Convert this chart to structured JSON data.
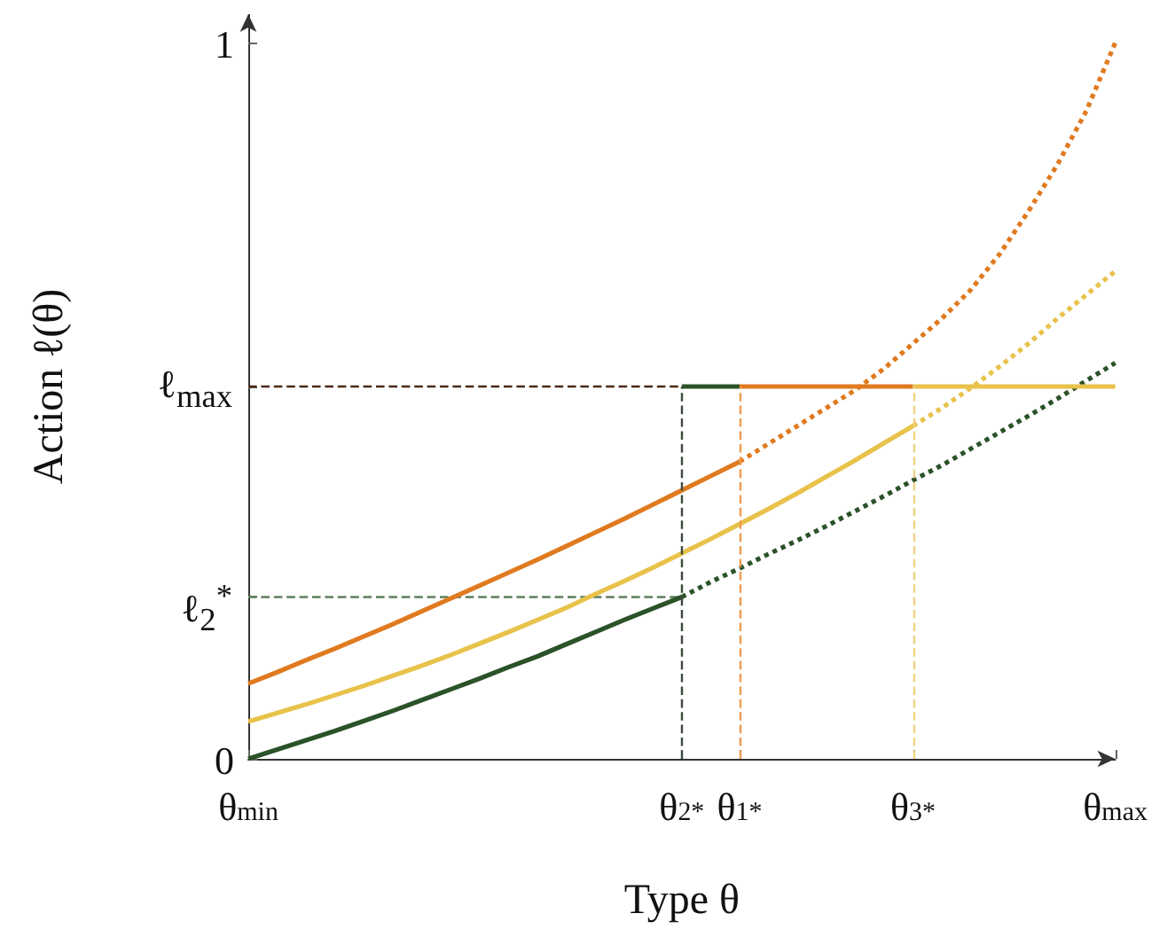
{
  "chart_data": {
    "type": "line",
    "xlabel": "Type θ",
    "ylabel": "Action ℓ(θ)",
    "categories": [
      "θ$_{min}$",
      null,
      null,
      null,
      null,
      null,
      null,
      null,
      null,
      null,
      null,
      null,
      null,
      null,
      null,
      "θ$_{2}$$^{*}$",
      null,
      "θ$_{1}$$^{*}$",
      null,
      null,
      null,
      null,
      null,
      "θ$_{3}$$^{*}$",
      null,
      null,
      null,
      null,
      null,
      null,
      "θ$_{max}$"
    ],
    "ylim": [
      0,
      1.04
    ],
    "yticks": [
      0,
      {
        "value": 0.226,
        "label": null
      },
      {
        "value": 0.52,
        "label": null
      },
      1
    ],
    "annotations": [
      "ℓ$_{2}$$^{*}$",
      "ℓ$_{max}$"
    ],
    "grid": false,
    "marker": "none",
    "ref_lines": [
      {
        "axis": "x",
        "value": "θ$_{2}$$^{*}$",
        "color": "#3d4a3c",
        "line_style": "dashed"
      },
      {
        "axis": "x",
        "value": "θ$_{1}$$^{*}$",
        "color": "#ee9a50",
        "line_style": "dashed"
      },
      {
        "axis": "x",
        "value": "θ$_{3}$$^{*}$",
        "color": "#f0d382",
        "line_style": "dashed"
      }
    ],
    "series": [
      {
        "color": "#5e7f5c",
        "line_style": "dashed",
        "values": [
          0.226,
          0.226,
          0.226,
          0.226,
          0.226,
          0.226,
          0.226,
          0.226,
          0.226,
          0.226,
          0.226,
          0.226,
          0.226,
          0.226,
          0.226,
          0.226,
          null,
          null,
          null,
          null,
          null,
          null,
          null,
          null,
          null,
          null,
          null,
          null,
          null,
          null,
          null
        ]
      },
      {
        "color": "#4a2a14",
        "line_style": "dashed",
        "values": [
          0.52,
          0.52,
          0.52,
          0.52,
          0.52,
          0.52,
          0.52,
          0.52,
          0.52,
          0.52,
          0.52,
          0.52,
          0.52,
          0.52,
          0.52,
          0.52,
          null,
          null,
          null,
          null,
          null,
          null,
          null,
          null,
          null,
          null,
          null,
          null,
          null,
          null,
          null
        ]
      },
      {
        "color": "#2b5229",
        "line_style": "solid",
        "values": [
          0,
          0.013,
          0.026,
          0.039,
          0.053,
          0.067,
          0.082,
          0.097,
          0.112,
          0.128,
          0.143,
          0.16,
          0.177,
          0.194,
          0.21,
          0.226,
          null,
          null,
          null,
          null,
          null,
          null,
          null,
          null,
          null,
          null,
          null,
          null,
          null,
          null,
          null
        ]
      },
      {
        "color": "#2b5229",
        "line_style": "dotted",
        "values": [
          null,
          null,
          null,
          null,
          null,
          null,
          null,
          null,
          null,
          null,
          null,
          null,
          null,
          null,
          null,
          0.226,
          0.247,
          0.266,
          0.286,
          0.305,
          0.325,
          0.346,
          0.367,
          0.389,
          0.41,
          0.433,
          0.456,
          0.479,
          0.503,
          0.528,
          0.553
        ]
      },
      {
        "color": "#e07a1f",
        "line_style": "solid",
        "values": [
          0.105,
          0.121,
          0.138,
          0.154,
          0.171,
          0.188,
          0.206,
          0.224,
          0.242,
          0.26,
          0.278,
          0.297,
          0.316,
          0.335,
          0.355,
          0.375,
          0.395,
          0.415,
          null,
          null,
          null,
          null,
          null,
          null,
          null,
          null,
          null,
          null,
          null,
          null,
          null
        ]
      },
      {
        "color": "#e07a1f",
        "line_style": "dotted",
        "values": [
          null,
          null,
          null,
          null,
          null,
          null,
          null,
          null,
          null,
          null,
          null,
          null,
          null,
          null,
          null,
          null,
          null,
          0.415,
          0.44,
          0.465,
          0.49,
          0.515,
          0.545,
          0.58,
          0.615,
          0.655,
          0.705,
          0.765,
          0.83,
          0.905,
          1
        ]
      },
      {
        "color": "#e8c24a",
        "line_style": "solid",
        "values": [
          0.052,
          0.064,
          0.076,
          0.089,
          0.102,
          0.116,
          0.13,
          0.145,
          0.161,
          0.177,
          0.194,
          0.211,
          0.23,
          0.248,
          0.267,
          0.287,
          0.307,
          0.328,
          0.349,
          0.371,
          0.394,
          0.417,
          0.441,
          0.465,
          null,
          null,
          null,
          null,
          null,
          null,
          null
        ]
      },
      {
        "color": "#e8c24a",
        "line_style": "dotted",
        "values": [
          null,
          null,
          null,
          null,
          null,
          null,
          null,
          null,
          null,
          null,
          null,
          null,
          null,
          null,
          null,
          null,
          null,
          null,
          null,
          null,
          null,
          null,
          null,
          0.465,
          0.49,
          0.518,
          0.548,
          0.58,
          0.615,
          0.648,
          0.681
        ]
      },
      {
        "color": "#2b5229",
        "line_style": "solid",
        "values": [
          null,
          null,
          null,
          null,
          null,
          null,
          null,
          null,
          null,
          null,
          null,
          null,
          null,
          null,
          null,
          0.52,
          0.52,
          0.52,
          null,
          null,
          null,
          null,
          null,
          null,
          null,
          null,
          null,
          null,
          null,
          null,
          null
        ]
      },
      {
        "color": "#e07a1f",
        "line_style": "solid",
        "values": [
          null,
          null,
          null,
          null,
          null,
          null,
          null,
          null,
          null,
          null,
          null,
          null,
          null,
          null,
          null,
          null,
          null,
          0.52,
          0.52,
          0.52,
          0.52,
          0.52,
          0.52,
          0.52,
          null,
          null,
          null,
          null,
          null,
          null,
          null
        ]
      },
      {
        "color": "#e8c24a",
        "line_style": "solid",
        "values": [
          null,
          null,
          null,
          null,
          null,
          null,
          null,
          null,
          null,
          null,
          null,
          null,
          null,
          null,
          null,
          null,
          null,
          null,
          null,
          null,
          null,
          null,
          null,
          0.52,
          0.52,
          0.52,
          0.52,
          0.52,
          0.52,
          0.52,
          0.52
        ]
      }
    ]
  }
}
